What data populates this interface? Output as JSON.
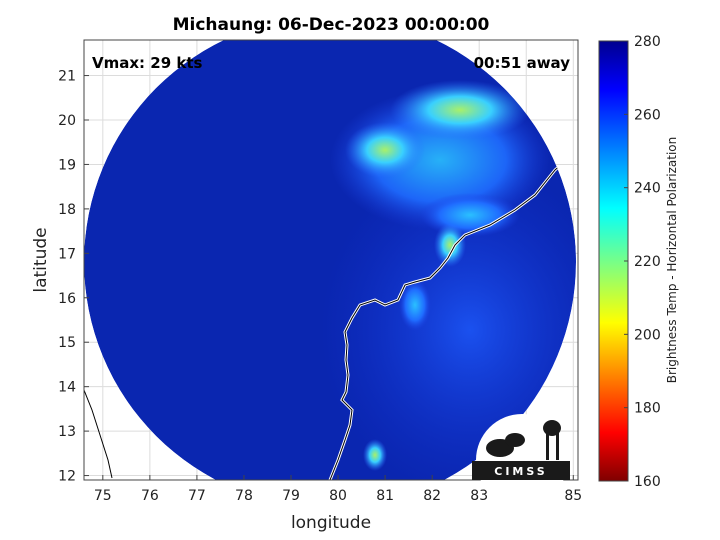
{
  "chart_data": {
    "type": "heatmap",
    "title": "Michaung: 06-Dec-2023 00:00:00",
    "xlabel": "longitude",
    "ylabel": "latitude",
    "xlim": [
      74.6,
      85.1
    ],
    "ylim": [
      11.9,
      21.8
    ],
    "x_ticks": [
      "75",
      "76",
      "77",
      "78",
      "79",
      "80",
      "81",
      "82",
      "83",
      "84",
      "85"
    ],
    "y_ticks": [
      "12",
      "13",
      "14",
      "15",
      "16",
      "17",
      "18",
      "19",
      "20",
      "21"
    ],
    "grid": true,
    "annotations": {
      "vmax": "Vmax: 29 kts",
      "time_offset": "00:51 away"
    },
    "colorbar": {
      "label": "Brightness Temp - Horizontal Polarization",
      "min": 160,
      "max": 280,
      "ticks": [
        "280",
        "260",
        "240",
        "220",
        "200",
        "180",
        "160"
      ],
      "colormap": "jet"
    },
    "swath": {
      "center": [
        79.85,
        16.55
      ],
      "radius_deg": 5.2
    },
    "background_value": 275,
    "warm_features": [
      {
        "region": "northeast band",
        "lon": 81.2,
        "lat": 19.3,
        "value": 225
      },
      {
        "region": "northeast band",
        "lon": 82.2,
        "lat": 20.4,
        "value": 228
      },
      {
        "region": "coastal cell",
        "lon": 82.4,
        "lat": 17.3,
        "value": 222
      },
      {
        "region": "coastal cell",
        "lon": 81.7,
        "lat": 15.7,
        "value": 238
      },
      {
        "region": "offshore",
        "lon": 80.8,
        "lat": 12.4,
        "value": 230
      }
    ],
    "logo": "CIMSS"
  }
}
